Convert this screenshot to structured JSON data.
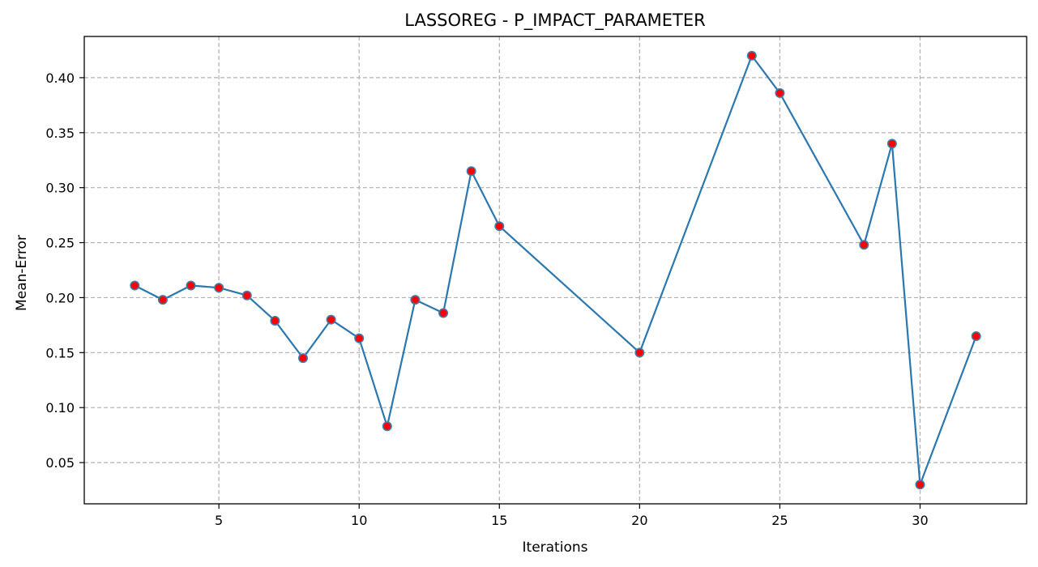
{
  "chart_data": {
    "type": "line",
    "title": "LASSOREG - P_IMPACT_PARAMETER",
    "xlabel": "Iterations",
    "ylabel": "Mean-Error",
    "xlim": [
      0.2,
      33.8
    ],
    "ylim": [
      0.0125,
      0.4375
    ],
    "xticks": [
      5,
      10,
      15,
      20,
      25,
      30
    ],
    "yticks": [
      0.05,
      0.1,
      0.15,
      0.2,
      0.25,
      0.3,
      0.35,
      0.4
    ],
    "ytick_labels": [
      "0.05",
      "0.10",
      "0.15",
      "0.20",
      "0.25",
      "0.30",
      "0.35",
      "0.40"
    ],
    "grid": true,
    "series": [
      {
        "x": [
          2,
          3,
          4,
          5,
          6,
          7,
          8,
          9,
          10,
          11,
          12,
          13,
          14,
          15,
          20,
          24,
          25,
          28,
          29,
          30,
          32
        ],
        "y": [
          0.211,
          0.198,
          0.211,
          0.209,
          0.202,
          0.179,
          0.145,
          0.18,
          0.163,
          0.083,
          0.198,
          0.186,
          0.315,
          0.265,
          0.15,
          0.42,
          0.386,
          0.248,
          0.34,
          0.03,
          0.165
        ],
        "line_color": "#2b77b0",
        "marker_face_color": "#ff0000",
        "marker_edge_color": "#3f7ea8"
      }
    ]
  }
}
